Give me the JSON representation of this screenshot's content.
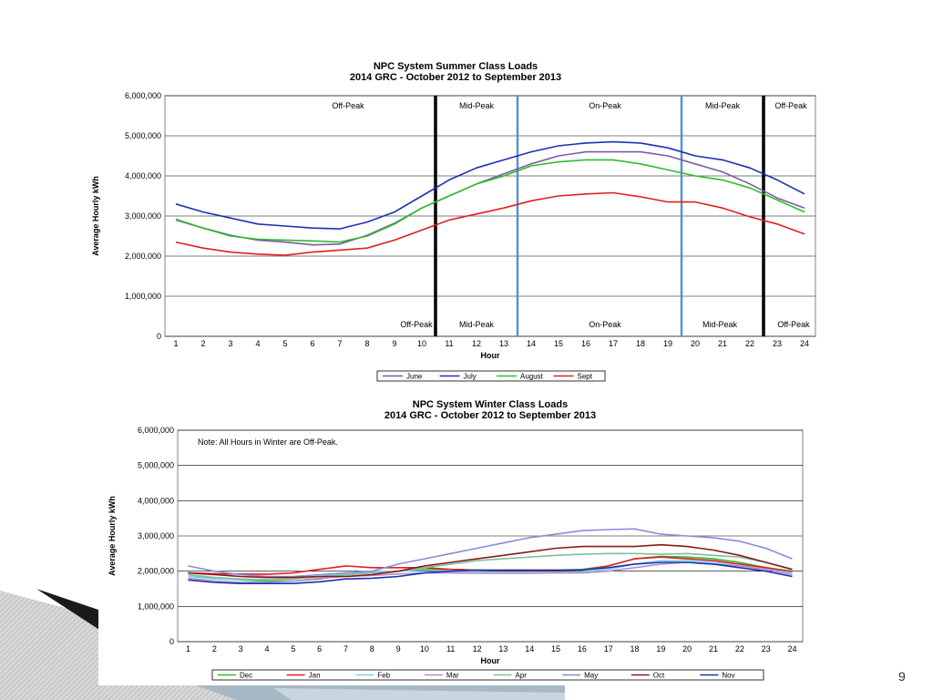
{
  "slide": {
    "page_number": "9"
  },
  "chart_data": [
    {
      "type": "line",
      "title": "NPC System Summer Class Loads",
      "subtitle": "2014 GRC - October 2012 to September 2013",
      "xlabel": "Hour",
      "ylabel": "Average Hourly kWh",
      "ylim": [
        0,
        6000000
      ],
      "yticks": [
        "0",
        "1,000,000",
        "2,000,000",
        "3,000,000",
        "4,000,000",
        "5,000,000",
        "6,000,000"
      ],
      "x": [
        1,
        2,
        3,
        4,
        5,
        6,
        7,
        8,
        9,
        10,
        11,
        12,
        13,
        14,
        15,
        16,
        17,
        18,
        19,
        20,
        21,
        22,
        23,
        24
      ],
      "grid": true,
      "legend_position": "bottom",
      "period_dividers": [
        {
          "after_hour": 10.5,
          "color": "#000000"
        },
        {
          "after_hour": 13.5,
          "color": "#5b8fd0"
        },
        {
          "after_hour": 19.5,
          "color": "#5b8fd0"
        },
        {
          "after_hour": 22.5,
          "color": "#000000"
        }
      ],
      "top_labels": [
        {
          "text": "Off-Peak",
          "hour": 7.3
        },
        {
          "text": "Mid-Peak",
          "hour": 12.0
        },
        {
          "text": "On-Peak",
          "hour": 16.7
        },
        {
          "text": "Mid-Peak",
          "hour": 21.0
        },
        {
          "text": "Off-Peak",
          "hour": 23.5
        }
      ],
      "bottom_labels": [
        {
          "text": "Off-Peak",
          "hour": 9.8
        },
        {
          "text": "Mid-Peak",
          "hour": 12.0
        },
        {
          "text": "On-Peak",
          "hour": 16.7
        },
        {
          "text": "Mid-Peak",
          "hour": 20.9
        },
        {
          "text": "Off-Peak",
          "hour": 23.6
        }
      ],
      "series": [
        {
          "name": "June",
          "color": "#7b5aa6",
          "values": [
            2900000,
            2700000,
            2520000,
            2400000,
            2350000,
            2280000,
            2300000,
            2520000,
            2820000,
            3200000,
            3500000,
            3800000,
            4050000,
            4300000,
            4500000,
            4600000,
            4600000,
            4600000,
            4500000,
            4300000,
            4100000,
            3800000,
            3450000,
            3200000
          ]
        },
        {
          "name": "July",
          "color": "#1f2fb5",
          "values": [
            3300000,
            3100000,
            2950000,
            2800000,
            2750000,
            2700000,
            2680000,
            2850000,
            3100000,
            3500000,
            3900000,
            4200000,
            4400000,
            4600000,
            4750000,
            4820000,
            4850000,
            4820000,
            4700000,
            4500000,
            4400000,
            4200000,
            3900000,
            3550000
          ]
        },
        {
          "name": "August",
          "color": "#2dbd2d",
          "values": [
            2920000,
            2700000,
            2500000,
            2420000,
            2400000,
            2380000,
            2350000,
            2500000,
            2800000,
            3200000,
            3500000,
            3800000,
            4000000,
            4250000,
            4350000,
            4400000,
            4400000,
            4300000,
            4150000,
            4000000,
            3900000,
            3700000,
            3400000,
            3100000
          ]
        },
        {
          "name": "Sept",
          "color": "#e02020",
          "values": [
            2350000,
            2200000,
            2100000,
            2050000,
            2020000,
            2100000,
            2150000,
            2200000,
            2400000,
            2650000,
            2900000,
            3050000,
            3200000,
            3380000,
            3500000,
            3550000,
            3580000,
            3480000,
            3350000,
            3350000,
            3200000,
            2980000,
            2800000,
            2550000
          ]
        }
      ]
    },
    {
      "type": "line",
      "title": "NPC System Winter Class Loads",
      "subtitle": "2014 GRC - October 2012 to September 2013",
      "xlabel": "Hour",
      "ylabel": "Average Hourly kWh",
      "ylim": [
        0,
        6000000
      ],
      "yticks": [
        "0",
        "1,000,000",
        "2,000,000",
        "3,000,000",
        "4,000,000",
        "5,000,000",
        "6,000,000"
      ],
      "x": [
        1,
        2,
        3,
        4,
        5,
        6,
        7,
        8,
        9,
        10,
        11,
        12,
        13,
        14,
        15,
        16,
        17,
        18,
        19,
        20,
        21,
        22,
        23,
        24
      ],
      "grid": true,
      "legend_position": "bottom",
      "note": "Note: All Hours in Winter are Off-Peak.",
      "series": [
        {
          "name": "Dec",
          "color": "#2dbd2d",
          "values": [
            1900000,
            1800000,
            1750000,
            1720000,
            1720000,
            1780000,
            1900000,
            1950000,
            2000000,
            2050000,
            2050000,
            2030000,
            2030000,
            2030000,
            2030000,
            2050000,
            2150000,
            2350000,
            2420000,
            2400000,
            2350000,
            2250000,
            2100000,
            2000000
          ]
        },
        {
          "name": "Jan",
          "color": "#e02020",
          "values": [
            1950000,
            1930000,
            1920000,
            1910000,
            1950000,
            2050000,
            2150000,
            2100000,
            2100000,
            2100000,
            2050000,
            2030000,
            2020000,
            2020000,
            2020000,
            2030000,
            2150000,
            2350000,
            2400000,
            2350000,
            2300000,
            2200000,
            2100000,
            1980000
          ]
        },
        {
          "name": "Feb",
          "color": "#7fd3e8",
          "values": [
            1850000,
            1780000,
            1760000,
            1760000,
            1780000,
            1850000,
            1950000,
            1980000,
            2000000,
            2030000,
            2000000,
            1980000,
            1970000,
            1970000,
            1970000,
            1980000,
            2050000,
            2200000,
            2300000,
            2300000,
            2250000,
            2150000,
            2050000,
            1950000
          ]
        },
        {
          "name": "Mar",
          "color": "#b08fc8",
          "values": [
            1800000,
            1720000,
            1680000,
            1680000,
            1720000,
            1800000,
            1850000,
            1880000,
            1920000,
            1950000,
            1950000,
            1940000,
            1940000,
            1940000,
            1950000,
            1950000,
            2000000,
            2100000,
            2200000,
            2250000,
            2200000,
            2150000,
            2050000,
            1900000
          ]
        },
        {
          "name": "Apr",
          "color": "#7fc0a0",
          "values": [
            1900000,
            1820000,
            1780000,
            1760000,
            1780000,
            1850000,
            1900000,
            1950000,
            2000000,
            2100000,
            2200000,
            2300000,
            2350000,
            2400000,
            2450000,
            2480000,
            2500000,
            2500000,
            2480000,
            2500000,
            2450000,
            2400000,
            2250000,
            2050000
          ]
        },
        {
          "name": "May",
          "color": "#8a8ae0",
          "values": [
            2150000,
            2000000,
            1900000,
            1850000,
            1850000,
            1900000,
            1950000,
            2000000,
            2200000,
            2350000,
            2500000,
            2650000,
            2800000,
            2950000,
            3050000,
            3150000,
            3180000,
            3200000,
            3050000,
            3000000,
            2950000,
            2850000,
            2650000,
            2350000
          ]
        },
        {
          "name": "Oct",
          "color": "#8b1a1a",
          "values": [
            1950000,
            1900000,
            1850000,
            1820000,
            1820000,
            1850000,
            1850000,
            1900000,
            2000000,
            2150000,
            2250000,
            2350000,
            2450000,
            2550000,
            2650000,
            2700000,
            2700000,
            2700000,
            2750000,
            2700000,
            2600000,
            2450000,
            2250000,
            2050000
          ]
        },
        {
          "name": "Nov",
          "color": "#1f2fb5",
          "values": [
            1750000,
            1680000,
            1650000,
            1650000,
            1650000,
            1700000,
            1780000,
            1800000,
            1850000,
            1950000,
            2000000,
            2030000,
            2030000,
            2030000,
            2030000,
            2030000,
            2100000,
            2200000,
            2250000,
            2250000,
            2200000,
            2100000,
            2000000,
            1850000
          ]
        }
      ]
    }
  ]
}
